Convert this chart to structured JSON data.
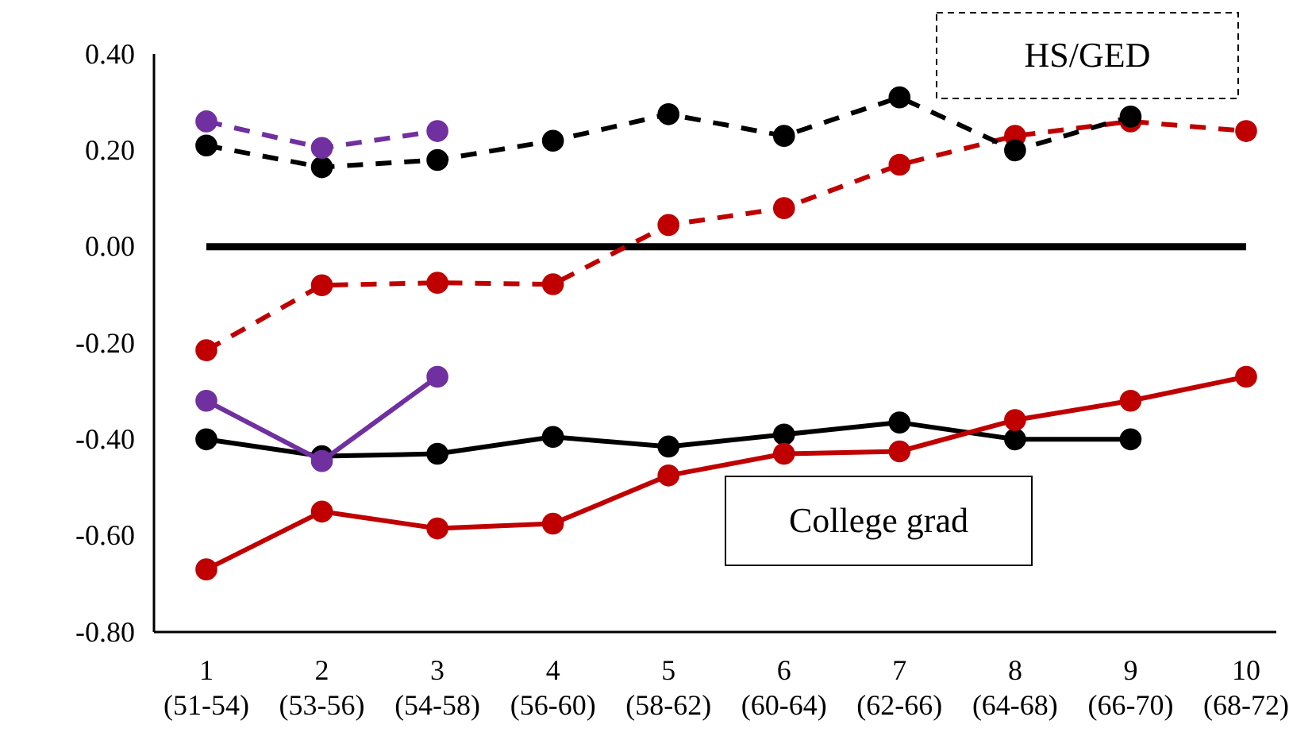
{
  "chart_data": {
    "type": "line",
    "categories": [
      "1\n(51-54)",
      "2\n(53-56)",
      "3\n(54-58)",
      "4\n(56-60)",
      "5\n(58-62)",
      "6\n(60-64)",
      "7\n(62-66)",
      "8\n(64-68)",
      "9\n(66-70)",
      "10\n(68-72)"
    ],
    "ylim": [
      -0.8,
      0.4
    ],
    "yticks": [
      {
        "value": -0.8,
        "label": "-0.80"
      },
      {
        "value": -0.6,
        "label": "-0.60"
      },
      {
        "value": -0.4,
        "label": "-0.40"
      },
      {
        "value": -0.2,
        "label": "-0.20"
      },
      {
        "value": 0,
        "label": "0.00"
      },
      {
        "value": 0.2,
        "label": "0.20"
      },
      {
        "value": 0.4,
        "label": "0.40"
      }
    ],
    "grid": false,
    "marker": "circle",
    "series": [
      {
        "color": "#c00000",
        "line_style": "dashed",
        "values": [
          -0.215,
          -0.08,
          -0.075,
          -0.078,
          0.045,
          0.08,
          0.17,
          0.23,
          0.26,
          0.24
        ]
      },
      {
        "color": "#000000",
        "line_style": "dashed",
        "values": [
          0.21,
          0.165,
          0.18,
          0.22,
          0.275,
          0.23,
          0.31,
          0.2,
          0.27,
          null
        ]
      },
      {
        "color": "#7030a0",
        "line_style": "dashed",
        "values": [
          0.26,
          0.205,
          0.24,
          null,
          null,
          null,
          null,
          null,
          null,
          null
        ]
      },
      {
        "color": "#000000",
        "line_style": "solid",
        "values": [
          -0.4,
          -0.435,
          -0.43,
          -0.395,
          -0.415,
          -0.39,
          -0.365,
          -0.4,
          -0.4,
          null
        ]
      },
      {
        "color": "#7030a0",
        "line_style": "solid",
        "values": [
          -0.32,
          -0.445,
          -0.27,
          null,
          null,
          null,
          null,
          null,
          null,
          null
        ]
      },
      {
        "color": "#c00000",
        "line_style": "solid",
        "values": [
          -0.67,
          -0.55,
          -0.585,
          -0.575,
          -0.475,
          -0.43,
          -0.425,
          -0.36,
          -0.32,
          -0.27
        ]
      }
    ],
    "ref_lines": [
      {
        "axis": "y",
        "value": 0,
        "color": "#000000"
      }
    ],
    "annotations": [
      "HS/GED",
      "College grad"
    ]
  }
}
